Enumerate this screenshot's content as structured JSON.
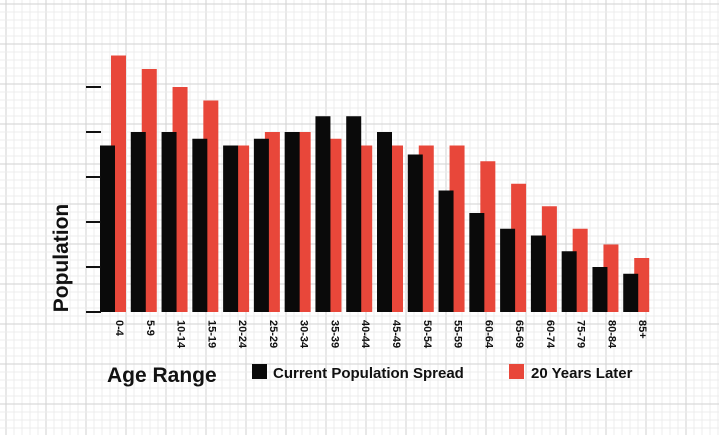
{
  "chart_data": {
    "type": "bar",
    "title": "",
    "xlabel": "Age Range",
    "ylabel": "Population",
    "categories": [
      "0-4",
      "5-9",
      "10-14",
      "15-19",
      "20-24",
      "25-29",
      "30-34",
      "35-39",
      "40-44",
      "45-49",
      "50-54",
      "55-59",
      "60-64",
      "65-69",
      "60-74",
      "75-79",
      "80-84",
      "85+"
    ],
    "series": [
      {
        "name": "Current Population Spread",
        "color": "#0a0a0a",
        "values": [
          3.7,
          4.0,
          4.0,
          3.85,
          3.7,
          3.85,
          4.0,
          4.35,
          4.35,
          4.0,
          3.5,
          2.7,
          2.2,
          1.85,
          1.7,
          1.35,
          1.0,
          0.85
        ]
      },
      {
        "name": "20 Years Later",
        "color": "#e8473a",
        "values": [
          5.7,
          5.4,
          5.0,
          4.7,
          3.7,
          4.0,
          4.0,
          3.85,
          3.7,
          3.7,
          3.7,
          3.7,
          3.35,
          2.85,
          2.35,
          1.85,
          1.5,
          1.2
        ]
      }
    ],
    "ylim": [
      0,
      6
    ],
    "grid": true,
    "legend": "bottom"
  },
  "colors": {
    "background": "#ffffff",
    "grid_minor": "#ececec",
    "grid_major": "#d2d2d2",
    "axis": "#111111"
  }
}
